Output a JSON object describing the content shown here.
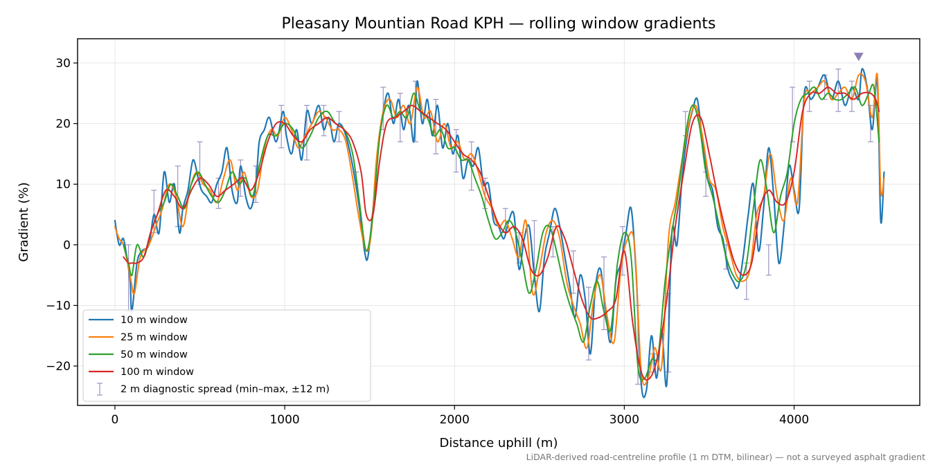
{
  "chart_data": {
    "type": "line",
    "title": "Pleasany Mountian Road KPH — rolling window gradients",
    "xlabel": "Distance uphill (m)",
    "ylabel": "Gradient (%)",
    "xlim": [
      -220,
      4740
    ],
    "ylim": [
      -26.5,
      34
    ],
    "xticks": [
      0,
      1000,
      2000,
      3000,
      4000
    ],
    "xtick_labels": [
      "0",
      "1000",
      "2000",
      "3000",
      "4000"
    ],
    "yticks": [
      -20,
      -10,
      0,
      10,
      20,
      30
    ],
    "ytick_labels": [
      "−20",
      "−10",
      "0",
      "10",
      "20",
      "30"
    ],
    "grid": true,
    "legend_position": "lower-left",
    "caption": "LiDAR-derived road-centreline profile (1 m DTM, bilinear) — not a surveyed asphalt gradient",
    "peak_marker": {
      "x": 4380,
      "y": 31,
      "color": "#8c7fb0"
    },
    "series": [
      {
        "name": "10 m window",
        "color": "#1f77b4",
        "width": 2.2,
        "x": [
          0,
          25,
          50,
          75,
          90,
          100,
          130,
          160,
          200,
          230,
          260,
          290,
          320,
          350,
          380,
          400,
          430,
          460,
          490,
          510,
          540,
          570,
          600,
          630,
          660,
          690,
          720,
          740,
          770,
          800,
          830,
          850,
          880,
          910,
          950,
          990,
          1010,
          1040,
          1070,
          1100,
          1130,
          1160,
          1200,
          1230,
          1260,
          1290,
          1320,
          1360,
          1400,
          1440,
          1470,
          1490,
          1520,
          1550,
          1580,
          1610,
          1640,
          1670,
          1700,
          1730,
          1760,
          1780,
          1810,
          1840,
          1870,
          1900,
          1930,
          1960,
          1990,
          2020,
          2050,
          2080,
          2110,
          2140,
          2170,
          2200,
          2230,
          2260,
          2290,
          2320,
          2350,
          2380,
          2410,
          2440,
          2470,
          2500,
          2530,
          2560,
          2590,
          2620,
          2650,
          2680,
          2710,
          2740,
          2770,
          2800,
          2830,
          2860,
          2890,
          2920,
          2950,
          2980,
          3010,
          3040,
          3070,
          3100,
          3130,
          3160,
          3190,
          3220,
          3250,
          3280,
          3310,
          3340,
          3370,
          3400,
          3430,
          3460,
          3490,
          3520,
          3550,
          3580,
          3610,
          3640,
          3670,
          3700,
          3730,
          3760,
          3790,
          3820,
          3850,
          3880,
          3910,
          3940,
          3970,
          4000,
          4030,
          4060,
          4100,
          4140,
          4180,
          4220,
          4260,
          4300,
          4340,
          4380,
          4400,
          4430,
          4460,
          4490,
          4510,
          4530
        ],
        "y": [
          4,
          0,
          1,
          -3,
          -6,
          -11,
          -3,
          -1,
          0,
          5,
          2,
          12,
          7,
          10,
          2,
          6,
          9,
          14,
          11,
          9,
          8,
          7,
          10,
          12,
          16,
          9,
          7,
          13,
          8,
          6,
          10,
          17,
          19,
          21,
          17,
          22,
          18,
          15,
          19,
          14,
          22,
          20,
          23,
          19,
          21,
          17,
          20,
          18,
          13,
          6,
          -1,
          -2,
          6,
          16,
          22,
          25,
          20,
          24,
          19,
          23,
          17,
          27,
          20,
          24,
          18,
          23,
          16,
          20,
          15,
          18,
          11,
          14,
          13,
          16,
          10,
          10,
          4,
          3,
          1,
          4,
          5,
          -4,
          1,
          3,
          -5,
          -11,
          -2,
          2,
          6,
          3,
          -2,
          -7,
          -12,
          -5,
          -9,
          -18,
          -7,
          -4,
          -11,
          -16,
          -6,
          -3,
          2,
          6,
          -5,
          -23,
          -24,
          -15,
          -22,
          -14,
          -23,
          2,
          0,
          11,
          18,
          22,
          24,
          17,
          11,
          9,
          3,
          1,
          -4,
          -6,
          -7,
          -2,
          5,
          10,
          -1,
          6,
          16,
          8,
          -3,
          3,
          13,
          9,
          6,
          25,
          24,
          26,
          28,
          24,
          27,
          23,
          26,
          24,
          29,
          26,
          19,
          27,
          4,
          12
        ]
      },
      {
        "name": "25 m window",
        "color": "#ff7f0e",
        "width": 2.0,
        "x": [
          0,
          25,
          50,
          75,
          95,
          115,
          150,
          200,
          240,
          280,
          320,
          360,
          400,
          440,
          480,
          520,
          560,
          600,
          640,
          680,
          720,
          760,
          800,
          840,
          880,
          920,
          960,
          1000,
          1040,
          1080,
          1120,
          1160,
          1200,
          1240,
          1280,
          1320,
          1360,
          1400,
          1440,
          1480,
          1510,
          1540,
          1580,
          1620,
          1660,
          1700,
          1740,
          1780,
          1820,
          1860,
          1900,
          1940,
          1980,
          2020,
          2060,
          2100,
          2140,
          2180,
          2220,
          2260,
          2300,
          2340,
          2380,
          2420,
          2460,
          2500,
          2540,
          2580,
          2620,
          2660,
          2700,
          2740,
          2780,
          2820,
          2860,
          2900,
          2940,
          2980,
          3020,
          3060,
          3100,
          3140,
          3180,
          3220,
          3260,
          3300,
          3340,
          3380,
          3420,
          3460,
          3500,
          3540,
          3580,
          3620,
          3660,
          3700,
          3740,
          3780,
          3820,
          3860,
          3900,
          3940,
          3980,
          4020,
          4060,
          4100,
          4140,
          4180,
          4220,
          4260,
          4300,
          4340,
          4380,
          4420,
          4460,
          4490,
          4510,
          4530
        ],
        "y": [
          3,
          1,
          0,
          -3,
          -6,
          -8,
          -2,
          0,
          3,
          6,
          10,
          8,
          3,
          9,
          12,
          10,
          9,
          7,
          11,
          14,
          9,
          12,
          8,
          9,
          16,
          19,
          18,
          21,
          19,
          16,
          18,
          20,
          22,
          21,
          19,
          19,
          17,
          11,
          4,
          -1,
          2,
          14,
          22,
          24,
          21,
          23,
          20,
          26,
          21,
          22,
          17,
          20,
          16,
          17,
          14,
          15,
          12,
          8,
          6,
          3,
          4,
          1,
          -2,
          4,
          -8,
          -4,
          2,
          4,
          1,
          -6,
          -10,
          -13,
          -17,
          -9,
          -5,
          -12,
          -16,
          -4,
          1,
          0,
          -21,
          -22,
          -17,
          -20,
          1,
          7,
          14,
          20,
          23,
          18,
          11,
          9,
          3,
          -1,
          -5,
          -6,
          -4,
          5,
          8,
          15,
          8,
          4,
          11,
          7,
          24,
          25,
          26,
          27,
          24,
          25,
          26,
          24,
          28,
          27,
          21,
          28,
          9,
          11
        ]
      },
      {
        "name": "50 m window",
        "color": "#2ca02c",
        "width": 2.0,
        "x": [
          50,
          80,
          100,
          130,
          170,
          210,
          250,
          290,
          330,
          370,
          410,
          450,
          490,
          530,
          570,
          610,
          650,
          690,
          730,
          770,
          810,
          850,
          900,
          950,
          1000,
          1050,
          1100,
          1150,
          1200,
          1250,
          1300,
          1350,
          1400,
          1440,
          1480,
          1520,
          1560,
          1600,
          1640,
          1680,
          1720,
          1760,
          1800,
          1840,
          1880,
          1920,
          1960,
          2000,
          2040,
          2080,
          2120,
          2160,
          2200,
          2240,
          2280,
          2320,
          2360,
          2400,
          2440,
          2480,
          2520,
          2560,
          2600,
          2640,
          2680,
          2720,
          2760,
          2800,
          2840,
          2880,
          2920,
          2960,
          3000,
          3040,
          3080,
          3120,
          3160,
          3200,
          3240,
          3280,
          3320,
          3360,
          3400,
          3440,
          3480,
          3520,
          3560,
          3600,
          3640,
          3680,
          3720,
          3760,
          3800,
          3840,
          3880,
          3920,
          3960,
          4000,
          4040,
          4080,
          4120,
          4160,
          4200,
          4240,
          4280,
          4320,
          4360,
          4400,
          4440,
          4470,
          4500
        ],
        "y": [
          0,
          -3,
          -5,
          0,
          -2,
          2,
          5,
          7,
          10,
          8,
          6,
          10,
          12,
          10,
          8,
          7,
          9,
          12,
          10,
          11,
          8,
          13,
          18,
          18,
          20,
          19,
          16,
          18,
          21,
          22,
          20,
          19,
          15,
          7,
          -1,
          5,
          18,
          23,
          21,
          22,
          21,
          25,
          22,
          21,
          18,
          19,
          16,
          16,
          14,
          14,
          11,
          8,
          4,
          1,
          2,
          4,
          2,
          -3,
          -8,
          -4,
          2,
          3,
          -1,
          -6,
          -10,
          -13,
          -16,
          -10,
          -6,
          -11,
          -14,
          -3,
          2,
          -2,
          -20,
          -22,
          -19,
          -18,
          -6,
          2,
          9,
          18,
          23,
          20,
          12,
          8,
          3,
          -2,
          -5,
          -6,
          -3,
          6,
          14,
          9,
          2,
          8,
          12,
          20,
          24,
          25,
          26,
          24,
          25,
          24,
          24,
          25,
          26,
          23,
          25,
          26,
          17
        ]
      },
      {
        "name": "100 m window",
        "color": "#d62728",
        "width": 2.0,
        "x": [
          50,
          80,
          100,
          130,
          170,
          210,
          250,
          300,
          350,
          400,
          450,
          500,
          550,
          600,
          650,
          700,
          750,
          800,
          850,
          900,
          950,
          1000,
          1050,
          1100,
          1150,
          1200,
          1250,
          1300,
          1350,
          1400,
          1450,
          1480,
          1520,
          1560,
          1600,
          1650,
          1700,
          1750,
          1800,
          1850,
          1900,
          1950,
          2000,
          2050,
          2100,
          2150,
          2200,
          2250,
          2300,
          2350,
          2400,
          2450,
          2500,
          2550,
          2600,
          2650,
          2700,
          2750,
          2800,
          2850,
          2900,
          2950,
          3000,
          3050,
          3100,
          3150,
          3200,
          3250,
          3300,
          3350,
          3400,
          3450,
          3500,
          3550,
          3600,
          3650,
          3700,
          3750,
          3800,
          3850,
          3900,
          3950,
          4000,
          4050,
          4100,
          4150,
          4200,
          4250,
          4300,
          4350,
          4400,
          4450,
          4480,
          4500
        ],
        "y": [
          -2,
          -3,
          -3,
          -3,
          -2,
          2,
          5,
          9,
          8,
          6,
          9,
          11,
          10,
          8,
          9,
          10,
          11,
          9,
          12,
          17,
          20,
          20,
          18,
          17,
          19,
          20,
          21,
          20,
          19,
          17,
          12,
          5,
          5,
          14,
          20,
          21,
          22,
          23,
          22,
          21,
          20,
          19,
          17,
          15,
          14,
          12,
          8,
          4,
          2,
          3,
          1,
          -4,
          -5,
          -2,
          3,
          1,
          -4,
          -9,
          -12,
          -12,
          -11,
          -9,
          -1,
          -13,
          -21,
          -22,
          -18,
          -9,
          3,
          12,
          20,
          21,
          15,
          8,
          2,
          -3,
          -5,
          -3,
          6,
          9,
          7,
          7,
          12,
          22,
          25,
          25,
          26,
          25,
          25,
          24,
          25,
          25,
          24,
          22
        ]
      }
    ],
    "diagnostic": {
      "name": "2 m diagnostic spread (min–max, ±12 m)",
      "color": "#9d93c2",
      "x": [
        80,
        230,
        370,
        500,
        610,
        740,
        830,
        980,
        1130,
        1230,
        1320,
        1420,
        1580,
        1680,
        1770,
        1890,
        2010,
        2100,
        2180,
        2300,
        2380,
        2470,
        2580,
        2700,
        2790,
        2880,
        2990,
        3080,
        3170,
        3260,
        3360,
        3480,
        3600,
        3720,
        3850,
        3990,
        4090,
        4180,
        4260,
        4340,
        4450
      ],
      "ymin": [
        -11,
        2,
        3,
        10,
        6,
        8,
        7,
        16,
        14,
        18,
        17,
        10,
        19,
        17,
        17,
        15,
        12,
        9,
        6,
        2,
        -3,
        -6,
        -2,
        -8,
        -19,
        -14,
        -5,
        -23,
        -21,
        -21,
        18,
        8,
        -4,
        -9,
        -5,
        17,
        22,
        24,
        22,
        22,
        17
      ],
      "ymax": [
        0,
        9,
        13,
        17,
        11,
        14,
        13,
        23,
        23,
        23,
        22,
        12,
        26,
        25,
        27,
        24,
        19,
        17,
        11,
        6,
        2,
        4,
        3,
        -1,
        -7,
        -2,
        3,
        -10,
        -18,
        -8,
        22,
        12,
        0,
        -3,
        0,
        26,
        27,
        28,
        29,
        27,
        23
      ]
    }
  }
}
